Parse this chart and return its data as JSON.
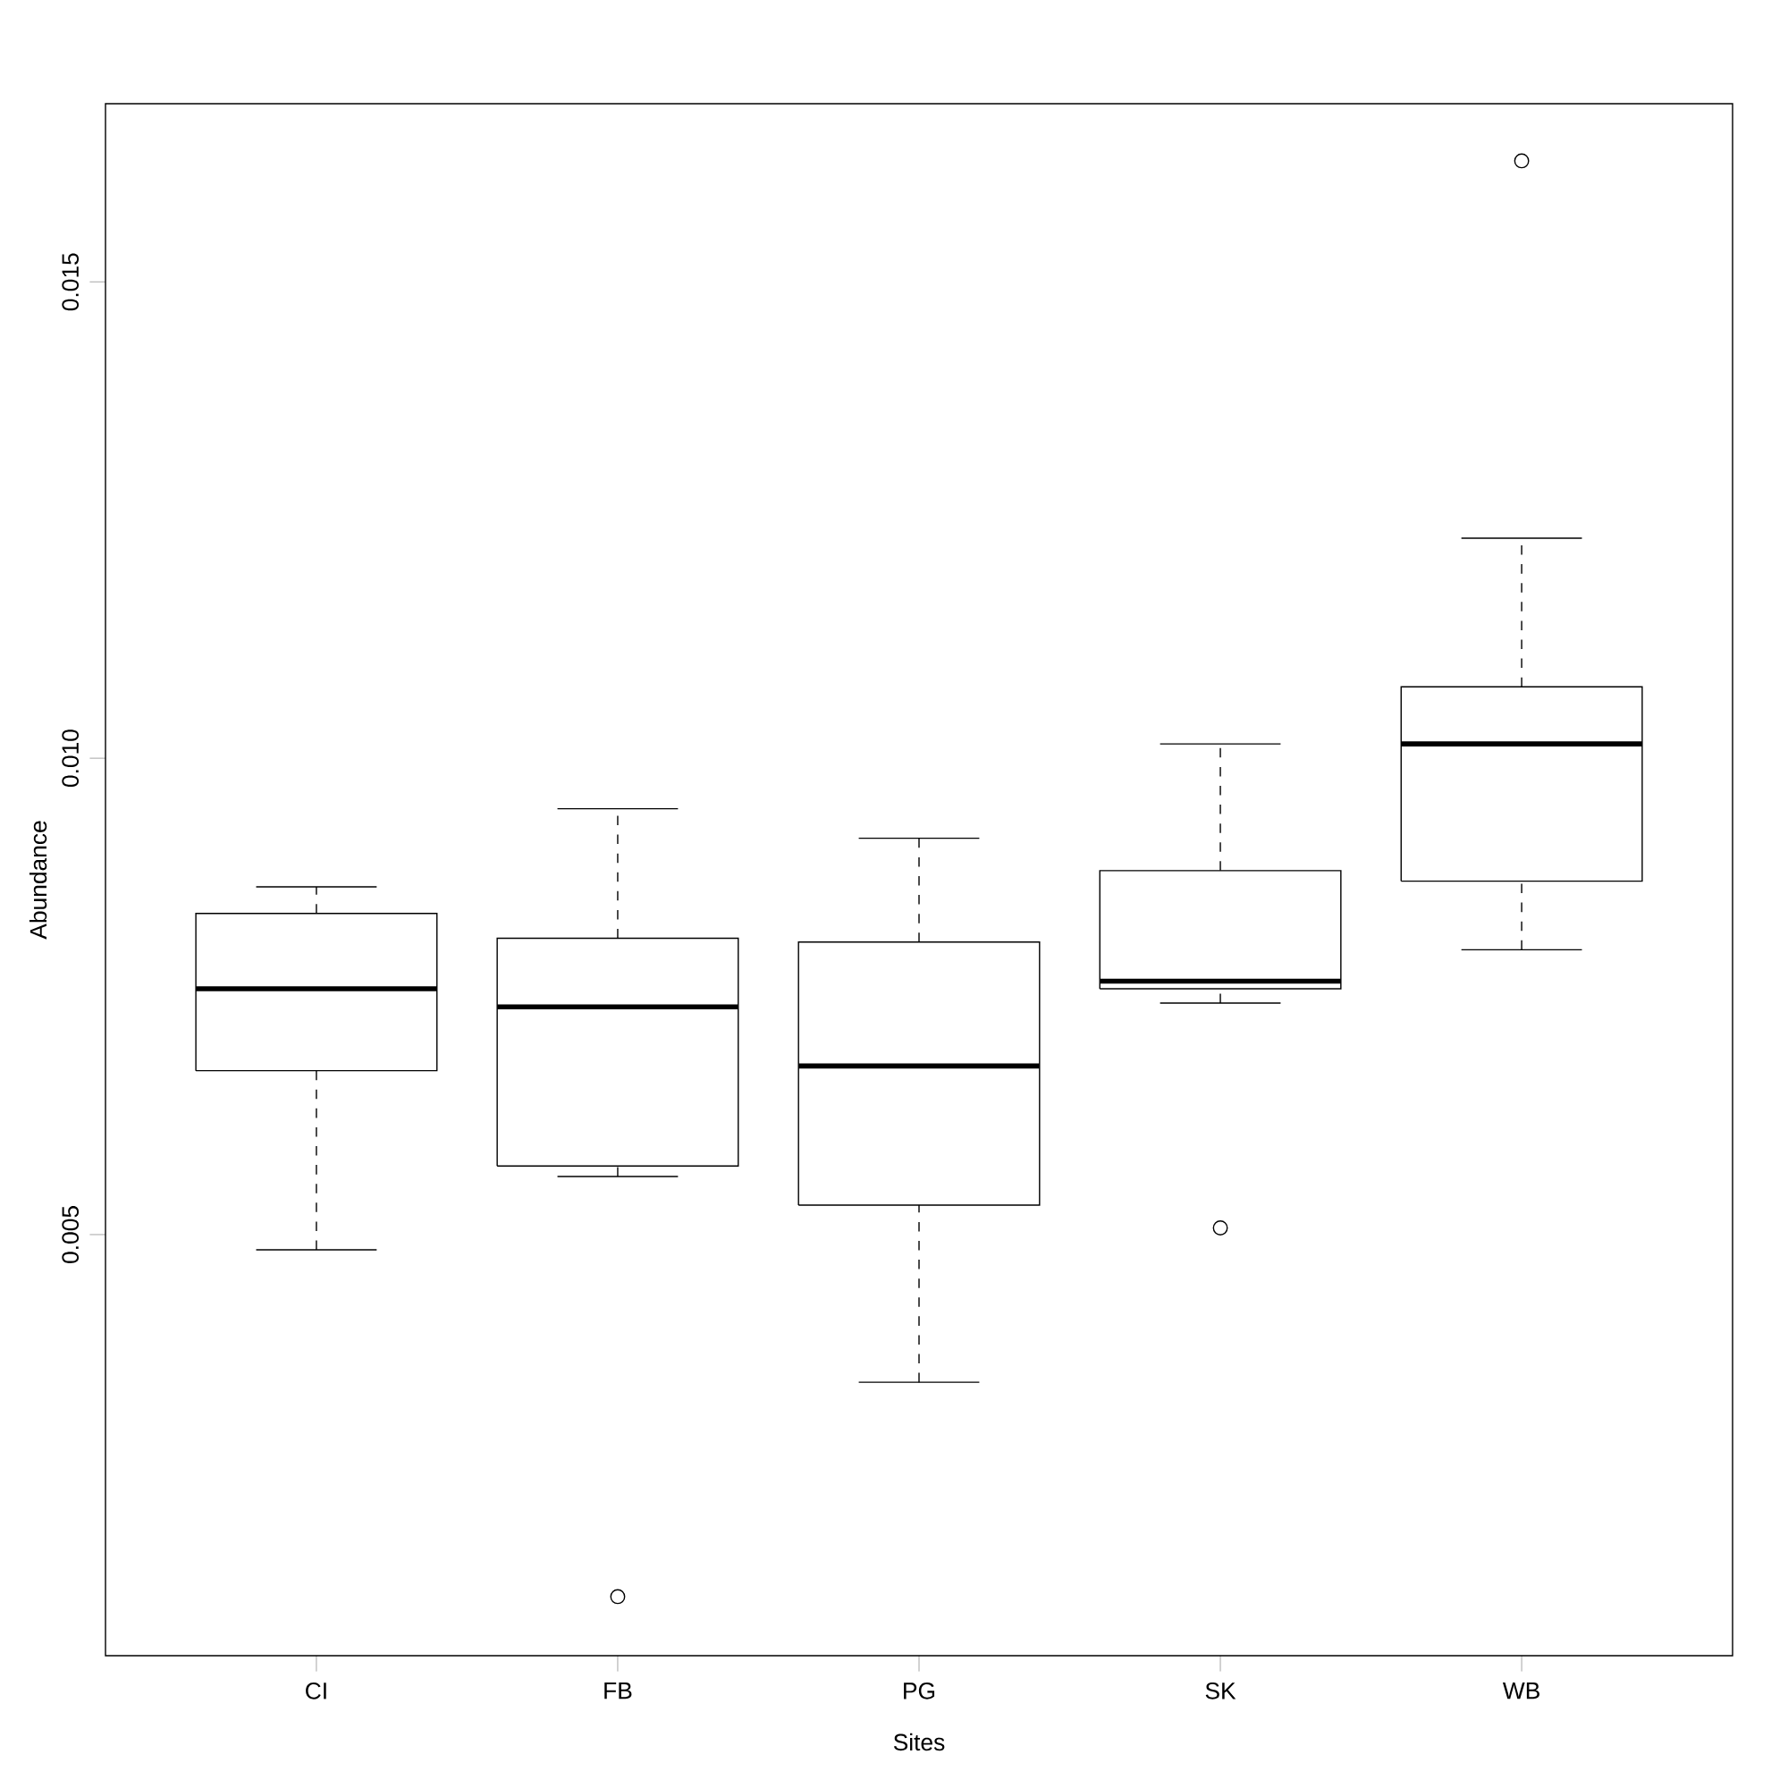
{
  "chart_data": {
    "type": "box",
    "xlabel": "Sites",
    "ylabel": "Abundance",
    "categories": [
      "CI",
      "FB",
      "PG",
      "SK",
      "WB"
    ],
    "ylim": [
      0.00058,
      0.01687
    ],
    "yticks": [
      0.005,
      {
        "value": 0.01,
        "label": "0.010"
      },
      0.015
    ],
    "boxes": [
      {
        "low": 0.00484,
        "q1": 0.00672,
        "median": 0.00758,
        "q3": 0.00837,
        "high": 0.00865
      },
      {
        "low": 0.00561,
        "q1": 0.00572,
        "median": 0.00739,
        "q3": 0.00811,
        "high": 0.00947,
        "outliers": [
          0.0012
        ]
      },
      {
        "low": 0.00345,
        "q1": 0.00531,
        "median": 0.00677,
        "q3": 0.00807,
        "high": 0.00916
      },
      {
        "low": 0.00743,
        "q1": 0.00758,
        "median": 0.00766,
        "q3": 0.00882,
        "high": 0.01015,
        "outliers": [
          0.00507
        ]
      },
      {
        "low": 0.00799,
        "q1": 0.00871,
        "median": 0.01015,
        "q3": 0.01075,
        "high": 0.01231,
        "outliers": [
          0.01627
        ]
      }
    ]
  }
}
